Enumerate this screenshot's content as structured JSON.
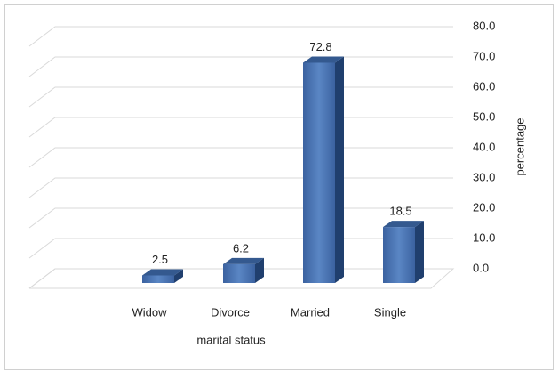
{
  "chart_data": {
    "type": "bar3d",
    "categories": [
      "Widow",
      "Divorce",
      "Married",
      "Single"
    ],
    "values": [
      2.5,
      6.2,
      72.8,
      18.5
    ],
    "color": "#4a74b0",
    "xlabel": "marital status",
    "ylabel": "percentage",
    "ylim": [
      0,
      80
    ],
    "yticks": [
      {
        "value": 0,
        "label": "0.0"
      },
      {
        "value": 10,
        "label": "10.0"
      },
      {
        "value": 20,
        "label": "20.0"
      },
      {
        "value": 30,
        "label": "30.0"
      },
      {
        "value": 40,
        "label": "40.0"
      },
      {
        "value": 50,
        "label": "50.0"
      },
      {
        "value": 60,
        "label": "60.0"
      },
      {
        "value": 70,
        "label": "70.0"
      },
      {
        "value": 80,
        "label": "80.0"
      }
    ],
    "grid": true
  }
}
